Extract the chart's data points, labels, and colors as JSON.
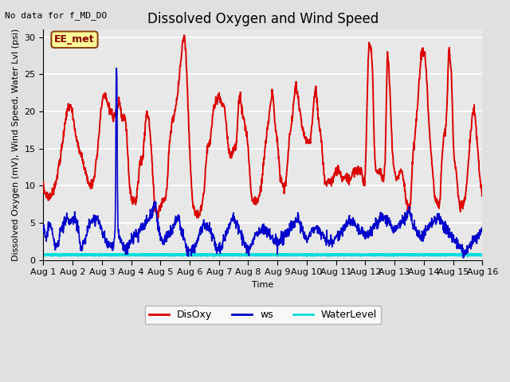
{
  "title": "Dissolved Oxygen and Wind Speed",
  "xlabel": "Time",
  "ylabel": "Dissolved Oxygen (mV), Wind Speed, Water Lvl (psi)",
  "top_left_text": "No data for f_MD_DO",
  "annotation_box": "EE_met",
  "ylim": [
    0,
    31
  ],
  "yticks": [
    0,
    5,
    10,
    15,
    20,
    25,
    30
  ],
  "xticklabels": [
    "Aug 1",
    "Aug 2",
    "Aug 3",
    "Aug 4",
    "Aug 5",
    "Aug 6",
    "Aug 7",
    "Aug 8",
    "Aug 9",
    "Aug 10",
    "Aug 11",
    "Aug 12",
    "Aug 13",
    "Aug 14",
    "Aug 15",
    "Aug 16"
  ],
  "background_color": "#e0e0e0",
  "plot_bg_color": "#e8e8e8",
  "grid_color": "white",
  "disoxy_color": "#dd0000",
  "ws_color": "#0000cc",
  "waterlevel_color": "#00dddd",
  "disoxy_linewidth": 1.4,
  "ws_linewidth": 1.2,
  "waterlevel_linewidth": 2.5,
  "legend_labels": [
    "DisOxy",
    "ws",
    "WaterLevel"
  ],
  "title_fontsize": 12,
  "label_fontsize": 8,
  "tick_fontsize": 8,
  "n_days": 15
}
